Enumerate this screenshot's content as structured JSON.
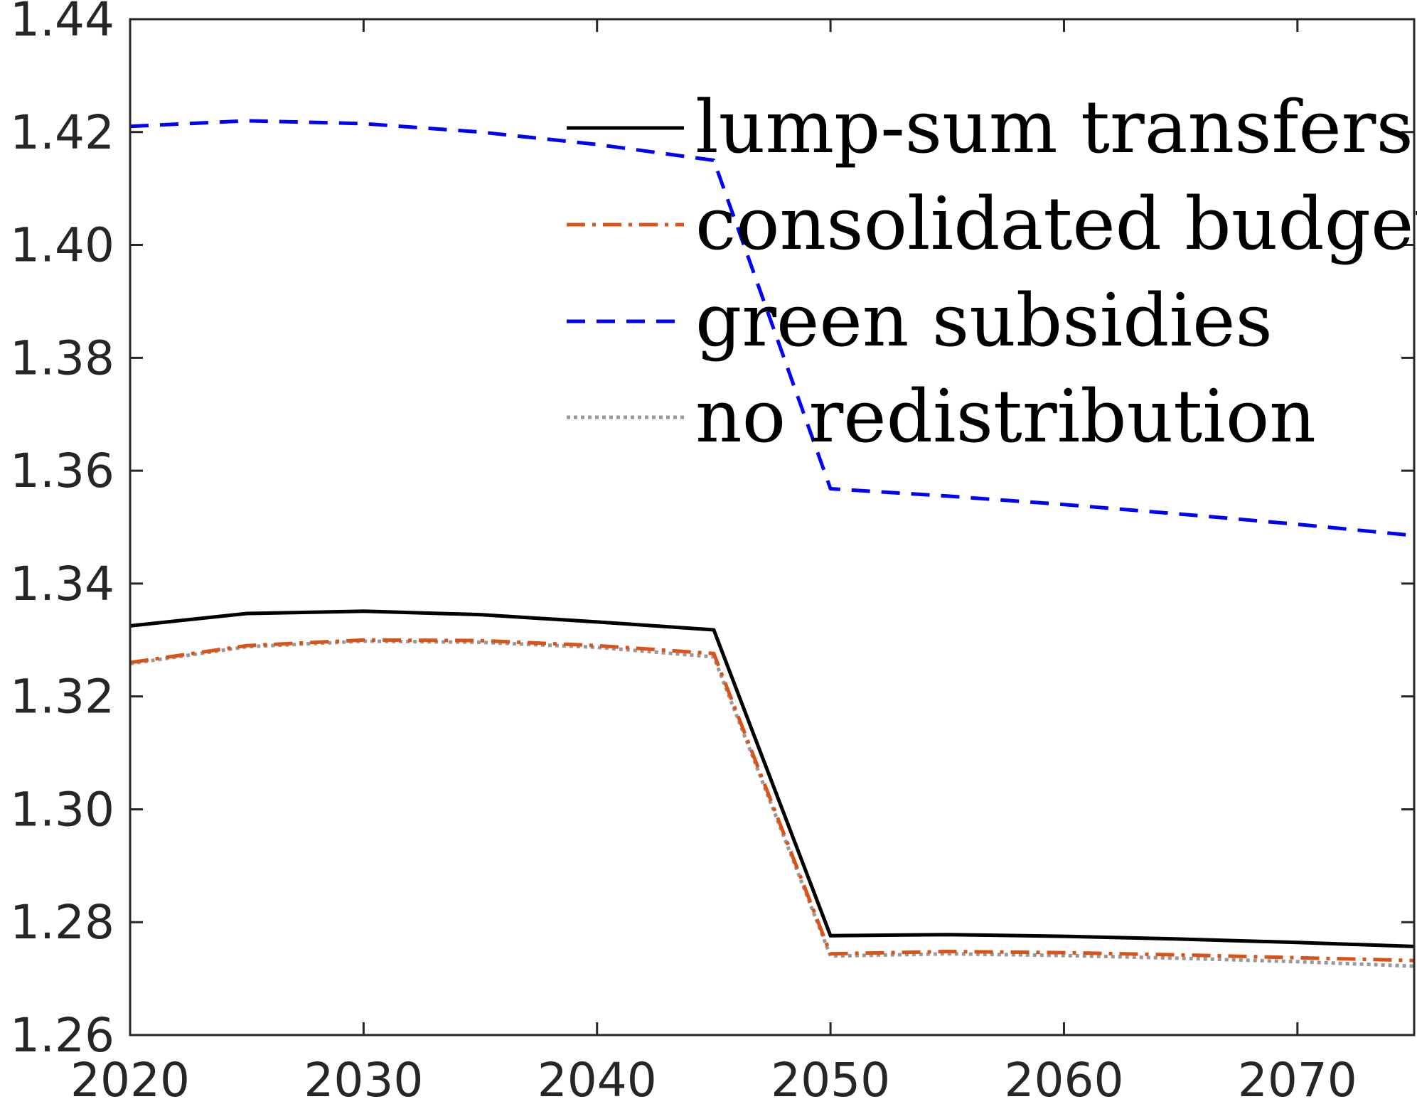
{
  "chart_data": {
    "type": "line",
    "title": "",
    "xlabel": "",
    "ylabel": "",
    "xlim": [
      2020,
      2075
    ],
    "ylim": [
      1.26,
      1.44
    ],
    "x_ticks": [
      2020,
      2030,
      2040,
      2050,
      2060,
      2070
    ],
    "y_ticks": [
      1.26,
      1.28,
      1.3,
      1.32,
      1.34,
      1.36,
      1.38,
      1.4,
      1.42,
      1.44
    ],
    "x_tick_labels": [
      "2020",
      "2030",
      "2040",
      "2050",
      "2060",
      "2070"
    ],
    "y_tick_labels": [
      "1.26",
      "1.28",
      "1.30",
      "1.32",
      "1.34",
      "1.36",
      "1.38",
      "1.40",
      "1.42",
      "1.44"
    ],
    "grid": false,
    "legend_position": "top-right",
    "x": [
      2020,
      2025,
      2030,
      2035,
      2040,
      2045,
      2050,
      2055,
      2060,
      2065,
      2070,
      2075
    ],
    "series": [
      {
        "name": "lump-sum transfers",
        "color": "#000000",
        "dash": "solid",
        "values": [
          1.3325,
          1.3347,
          1.3351,
          1.3345,
          1.3332,
          1.3318,
          1.2776,
          1.2778,
          1.2775,
          1.277,
          1.2764,
          1.2757
        ]
      },
      {
        "name": "consolidated budget",
        "color": "#D95319",
        "dash": "dashdot",
        "values": [
          1.326,
          1.329,
          1.33,
          1.3299,
          1.329,
          1.3276,
          1.2744,
          1.2748,
          1.2746,
          1.2742,
          1.2737,
          1.2732
        ]
      },
      {
        "name": "green subsidies",
        "color": "#0000FF",
        "dash": "dashed",
        "values": [
          1.421,
          1.422,
          1.4215,
          1.42,
          1.4178,
          1.415,
          1.3568,
          1.3555,
          1.354,
          1.3523,
          1.3505,
          1.3485
        ]
      },
      {
        "name": "no redistribution",
        "color": "#999999",
        "dash": "dotted",
        "values": [
          1.3258,
          1.3288,
          1.3298,
          1.3296,
          1.3287,
          1.327,
          1.274,
          1.2744,
          1.2741,
          1.2736,
          1.273,
          1.2722
        ]
      }
    ]
  }
}
